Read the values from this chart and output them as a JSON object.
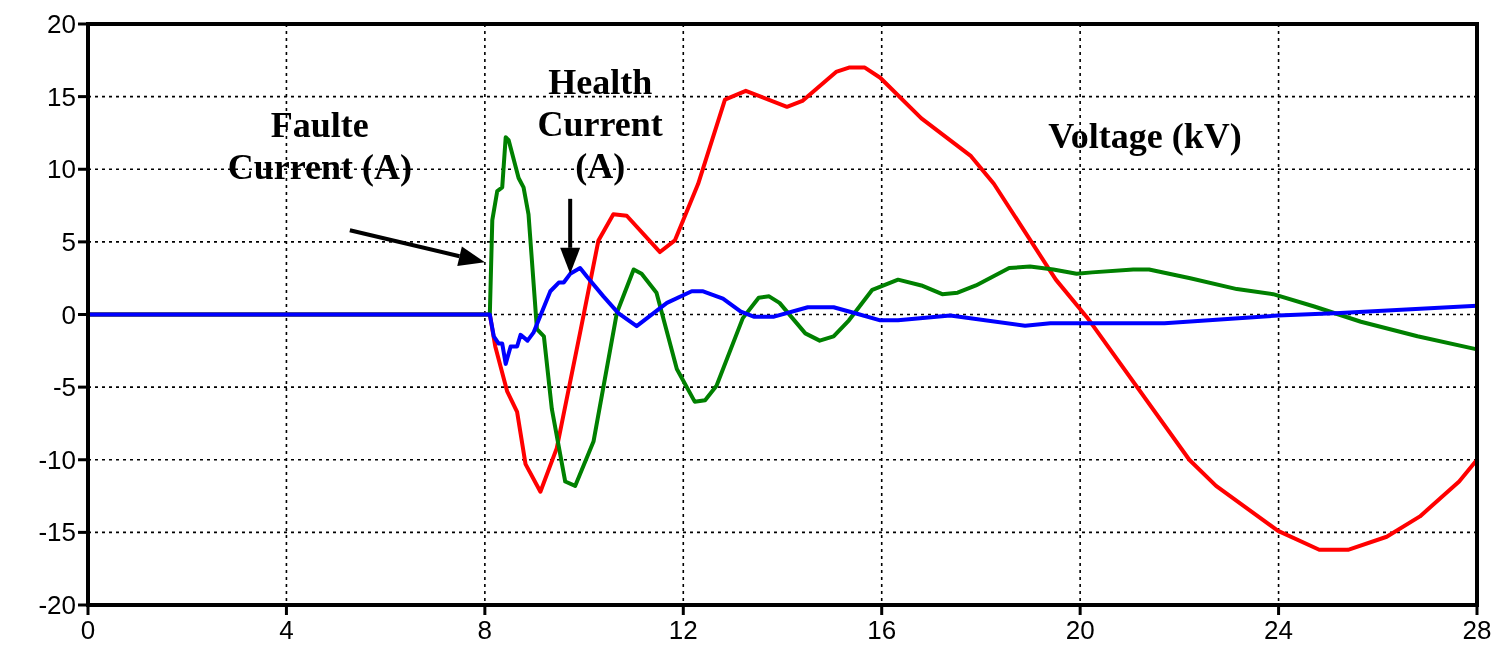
{
  "chart_data": {
    "type": "line",
    "xlim": [
      0,
      28
    ],
    "ylim": [
      -20,
      20
    ],
    "xticks": [
      0,
      4,
      8,
      12,
      16,
      20,
      24,
      28
    ],
    "yticks": [
      -20,
      -15,
      -10,
      -5,
      0,
      5,
      10,
      15,
      20
    ],
    "grid": true,
    "line_style": "solid",
    "series": [
      {
        "color": "#ff0000",
        "x": [
          0,
          8.1,
          8.21,
          8.45,
          8.65,
          8.82,
          9.12,
          9.45,
          9.92,
          10.29,
          10.59,
          10.86,
          11.53,
          11.83,
          12.3,
          12.84,
          13.26,
          14.09,
          14.4,
          15.08,
          15.34,
          15.66,
          15.97,
          16.8,
          17.8,
          18.26,
          19.51,
          20.14,
          22.2,
          22.74,
          23.99,
          24.82,
          25.4,
          26.18,
          26.85,
          27.64,
          28
        ],
        "values": [
          0,
          0,
          -2.2,
          -5.3,
          -6.7,
          -10.3,
          -12.2,
          -9.2,
          -1.25,
          5.1,
          6.9,
          6.8,
          4.3,
          5.1,
          9.0,
          14.8,
          15.4,
          14.3,
          14.7,
          16.7,
          17.0,
          17.0,
          16.3,
          13.5,
          10.9,
          9.0,
          2.4,
          -0.2,
          -10.0,
          -11.8,
          -14.9,
          -16.2,
          -16.2,
          -15.3,
          -13.9,
          -11.5,
          -10.0
        ]
      },
      {
        "color": "#008000",
        "x": [
          0,
          8.1,
          8.15,
          8.25,
          8.35,
          8.42,
          8.48,
          8.68,
          8.78,
          8.88,
          9.05,
          9.19,
          9.35,
          9.62,
          9.82,
          10.19,
          10.66,
          11.0,
          11.16,
          11.46,
          11.87,
          12.23,
          12.44,
          12.67,
          13.2,
          13.52,
          13.73,
          13.94,
          14.46,
          14.75,
          15.03,
          15.34,
          15.81,
          16.33,
          16.8,
          17.22,
          17.53,
          17.9,
          18.57,
          18.99,
          19.46,
          19.93,
          20.24,
          21.07,
          21.39,
          22.22,
          23.16,
          23.89,
          24.72,
          25.66,
          26.8,
          28
        ],
        "values": [
          0,
          0,
          6.5,
          8.5,
          8.75,
          12.2,
          12.0,
          9.4,
          8.75,
          6.9,
          -1.0,
          -1.5,
          -6.5,
          -11.5,
          -11.8,
          -8.75,
          0.1,
          3.1,
          2.8,
          1.5,
          -3.75,
          -6.0,
          -5.9,
          -4.9,
          -0.25,
          1.15,
          1.25,
          0.8,
          -1.3,
          -1.8,
          -1.5,
          -0.4,
          1.7,
          2.4,
          2.0,
          1.4,
          1.5,
          2.0,
          3.2,
          3.3,
          3.1,
          2.8,
          2.9,
          3.1,
          3.1,
          2.5,
          1.75,
          1.4,
          0.55,
          -0.5,
          -1.5,
          -2.4
        ]
      },
      {
        "color": "#0000ff",
        "x": [
          0,
          8.1,
          8.18,
          8.28,
          8.35,
          8.42,
          8.52,
          8.65,
          8.72,
          8.86,
          8.98,
          9.32,
          9.49,
          9.59,
          9.72,
          9.92,
          10.06,
          10.39,
          10.69,
          11.06,
          11.67,
          12.17,
          12.4,
          12.8,
          13.16,
          13.42,
          13.83,
          14.51,
          15.03,
          15.45,
          15.97,
          16.33,
          17.38,
          18.89,
          19.4,
          21.7,
          23.99,
          25.24,
          28
        ],
        "values": [
          0,
          0,
          -1.5,
          -2.0,
          -2.0,
          -3.4,
          -2.2,
          -2.2,
          -1.4,
          -1.8,
          -1.25,
          1.6,
          2.2,
          2.2,
          2.8,
          3.2,
          2.6,
          1.25,
          0.1,
          -0.8,
          0.8,
          1.6,
          1.6,
          1.1,
          0.2,
          -0.15,
          -0.15,
          0.5,
          0.5,
          0.1,
          -0.4,
          -0.4,
          -0.07,
          -0.77,
          -0.6,
          -0.6,
          -0.07,
          0.1,
          0.6
        ]
      }
    ],
    "annotations": [
      {
        "text": "Faulte\nCurrent (A)",
        "x": 8.0,
        "y": 3.6
      },
      {
        "text": "Health\nCurrent\n(A)",
        "x": 9.72,
        "y": 2.8
      },
      "Voltage (kV)"
    ]
  }
}
